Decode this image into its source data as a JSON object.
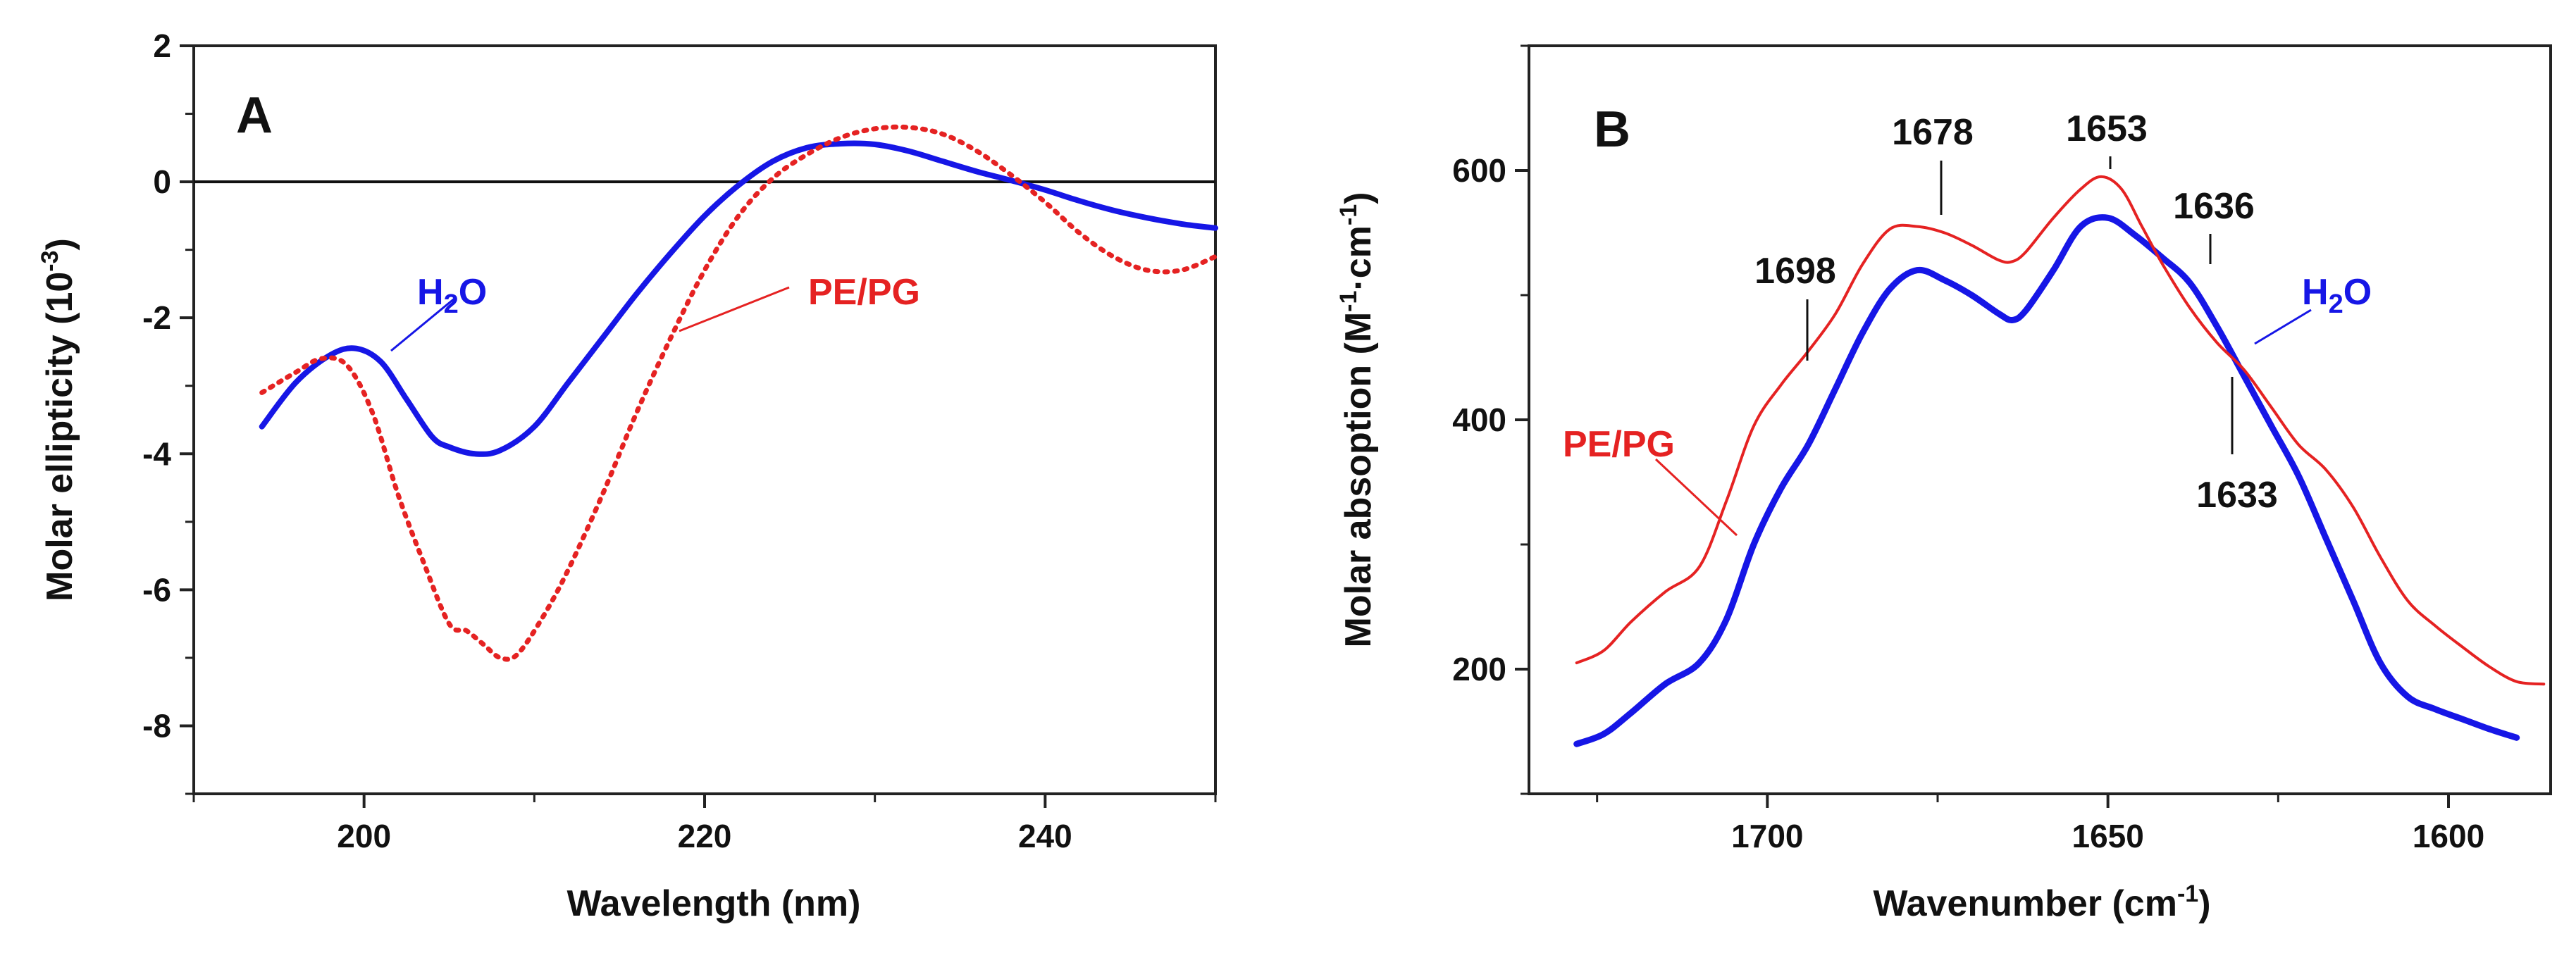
{
  "chart_data": [
    {
      "id": "A",
      "type": "line",
      "panel_label": "A",
      "xlabel": "Wavelength (nm)",
      "ylabel": "Molar ellipticity (10",
      "ylabel_sup": "-3",
      "ylabel_close": ")",
      "xlim": [
        190,
        250
      ],
      "ylim": [
        -9,
        2
      ],
      "xticks": [
        200,
        220,
        240
      ],
      "yticks": [
        2,
        0,
        -2,
        -4,
        -6,
        -8
      ],
      "zero_line": true,
      "series": [
        {
          "name": "H2O",
          "label_main": "H",
          "label_sub": "2",
          "label_tail": "O",
          "color": "#1616e6",
          "style": "solid",
          "x": [
            194,
            196,
            198,
            199.5,
            201,
            202.5,
            204,
            205,
            206.5,
            208,
            210,
            212,
            214,
            216,
            218,
            220,
            222,
            224,
            226,
            228,
            230,
            232,
            234,
            236,
            238,
            240,
            242,
            244,
            246,
            248,
            250
          ],
          "y": [
            -3.6,
            -2.95,
            -2.55,
            -2.45,
            -2.65,
            -3.2,
            -3.75,
            -3.9,
            -4.0,
            -3.95,
            -3.6,
            -2.95,
            -2.3,
            -1.65,
            -1.05,
            -0.5,
            -0.05,
            0.3,
            0.5,
            0.56,
            0.55,
            0.45,
            0.3,
            0.15,
            0.02,
            -0.12,
            -0.28,
            -0.42,
            -0.53,
            -0.62,
            -0.68
          ]
        },
        {
          "name": "PE/PG",
          "label_main": "PE/PG",
          "color": "#e52222",
          "style": "dotted",
          "x": [
            194,
            196,
            197.5,
            199,
            200.5,
            202,
            203.5,
            205,
            206,
            207,
            208,
            209,
            210.5,
            212,
            214,
            216,
            218,
            220,
            222,
            224,
            226,
            228,
            230,
            232,
            234,
            236,
            238,
            240,
            242,
            244,
            246,
            248,
            250
          ],
          "y": [
            -3.1,
            -2.8,
            -2.6,
            -2.7,
            -3.4,
            -4.6,
            -5.6,
            -6.5,
            -6.6,
            -6.8,
            -7.0,
            -6.95,
            -6.4,
            -5.7,
            -4.6,
            -3.4,
            -2.3,
            -1.3,
            -0.5,
            0.05,
            0.4,
            0.65,
            0.78,
            0.8,
            0.7,
            0.45,
            0.1,
            -0.3,
            -0.75,
            -1.1,
            -1.3,
            -1.3,
            -1.1
          ]
        }
      ]
    },
    {
      "id": "B",
      "type": "line",
      "panel_label": "B",
      "xlabel": "Wavenumber (cm",
      "xlabel_sup": "-1",
      "xlabel_close": ")",
      "ylabel": "Molar absoption (M",
      "ylabel_sup1": "-1",
      "ylabel_mid": "·cm",
      "ylabel_sup2": "-1",
      "ylabel_close": ")",
      "xlim": [
        1735,
        1585
      ],
      "ylim": [
        100,
        700
      ],
      "xticks": [
        1700,
        1650,
        1600
      ],
      "yticks": [
        200,
        400,
        600
      ],
      "series": [
        {
          "name": "H2O",
          "label_main": "H",
          "label_sub": "2",
          "label_tail": "O",
          "color": "#1616e6",
          "style": "solid",
          "x": [
            1728,
            1724,
            1720,
            1715,
            1710,
            1706,
            1702,
            1698,
            1694,
            1690,
            1686,
            1682,
            1678,
            1674,
            1670,
            1666,
            1664,
            1662,
            1658,
            1654,
            1650,
            1646,
            1642,
            1638,
            1634,
            1630,
            1626,
            1622,
            1618,
            1614,
            1610,
            1606,
            1602,
            1598,
            1594,
            1590
          ],
          "y": [
            140,
            148,
            165,
            188,
            205,
            240,
            300,
            345,
            380,
            425,
            470,
            505,
            520,
            512,
            500,
            485,
            480,
            488,
            520,
            555,
            562,
            548,
            530,
            510,
            475,
            435,
            395,
            355,
            305,
            255,
            205,
            178,
            168,
            160,
            152,
            145
          ]
        },
        {
          "name": "PE/PG",
          "label_main": "PE/PG",
          "color": "#e52222",
          "style": "solid",
          "x": [
            1728,
            1724,
            1720,
            1715,
            1710,
            1706,
            1702,
            1698,
            1694,
            1690,
            1686,
            1682,
            1678,
            1674,
            1670,
            1666,
            1664,
            1662,
            1658,
            1654,
            1651,
            1648,
            1645,
            1642,
            1638,
            1634,
            1630,
            1626,
            1622,
            1618,
            1614,
            1610,
            1606,
            1602,
            1598,
            1594,
            1590,
            1586
          ],
          "y": [
            205,
            215,
            238,
            262,
            282,
            335,
            395,
            428,
            455,
            485,
            525,
            553,
            555,
            550,
            540,
            528,
            527,
            535,
            562,
            585,
            595,
            585,
            555,
            525,
            490,
            462,
            440,
            410,
            380,
            360,
            330,
            290,
            255,
            235,
            218,
            202,
            190,
            188
          ]
        }
      ],
      "annotations": [
        {
          "label": "1698",
          "x": 1698
        },
        {
          "label": "1678",
          "x": 1678
        },
        {
          "label": "1653",
          "x": 1653
        },
        {
          "label": "1636",
          "x": 1636
        },
        {
          "label": "1633",
          "x": 1633
        }
      ]
    }
  ]
}
